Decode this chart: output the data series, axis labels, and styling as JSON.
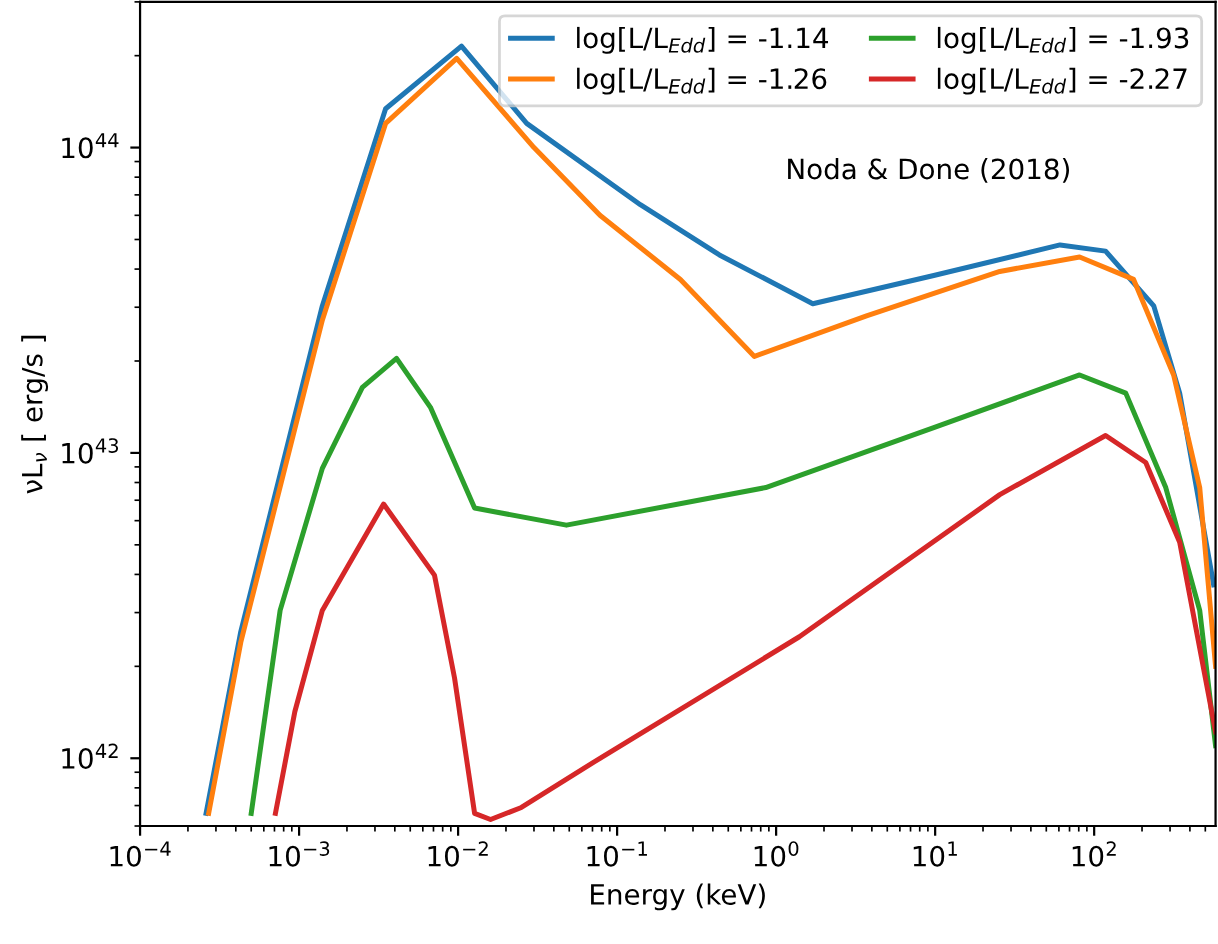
{
  "chart_data": {
    "type": "line",
    "xlabel": "Energy (keV)",
    "ylabel": "νL$_{ν}$ [ erg/s ]",
    "log": "xy",
    "grid": false,
    "legend": "top right",
    "marker": "none",
    "line_style": "solid",
    "xlim": [
      0.0001,
      580
    ],
    "ylim": [
      6e+41,
      3e+44
    ],
    "xticks": [
      {
        "value": 0.0001,
        "label": "10$^{−4}$"
      },
      {
        "value": 0.001,
        "label": "10$^{−3}$"
      },
      {
        "value": 0.01,
        "label": "10$^{−2}$"
      },
      {
        "value": 0.1,
        "label": "10$^{−1}$"
      },
      {
        "value": 1,
        "label": "10$^{0}$"
      },
      {
        "value": 10,
        "label": "10$^{1}$"
      },
      {
        "value": 100,
        "label": "10$^{2}$"
      }
    ],
    "yticks": [
      {
        "value": 1e+42,
        "label": "10$^{42}$"
      },
      {
        "value": 1e+43,
        "label": "10$^{43}$"
      },
      {
        "value": 1e+44,
        "label": "10$^{44}$"
      }
    ],
    "annotations": [
      "Noda & Done (2018)"
    ],
    "series": [
      {
        "name": "log[L/L$_{Edd}$] = -1.14",
        "color": "#1f77b4",
        "x": [
          0.00026,
          0.00043,
          0.0014,
          0.0035,
          0.0105,
          0.027,
          0.14,
          0.44,
          1.7,
          9.8,
          61,
          118,
          237,
          345,
          564
        ],
        "values": [
          6.6e+41,
          2.6e+42,
          3.03e+43,
          1.34e+44,
          2.15e+44,
          1.2e+44,
          6.5e+43,
          4.45e+43,
          3.08e+43,
          3.81e+43,
          4.8e+43,
          4.58e+43,
          3.03e+43,
          1.57e+43,
          3.7e+42
        ]
      },
      {
        "name": "log[L/L$_{Edd}$] = -1.26",
        "color": "#ff7f0e",
        "x": [
          0.00027,
          0.00043,
          0.0014,
          0.0035,
          0.0098,
          0.03,
          0.078,
          0.25,
          0.73,
          3.7,
          25.5,
          81,
          177,
          316,
          461,
          580
        ],
        "values": [
          6.6e+41,
          2.4e+42,
          2.72e+43,
          1.2e+44,
          1.96e+44,
          1e+44,
          6e+43,
          3.7e+43,
          2.07e+43,
          2.81e+43,
          3.93e+43,
          4.38e+43,
          3.7e+43,
          1.8e+43,
          7.7e+42,
          2e+42
        ]
      },
      {
        "name": "log[L/L$_{Edd}$] = -1.93",
        "color": "#2ca02c",
        "x": [
          0.0005,
          0.00076,
          0.0014,
          0.0025,
          0.0041,
          0.0067,
          0.0127,
          0.048,
          0.86,
          9.8,
          81,
          158,
          282,
          461,
          580
        ],
        "values": [
          6.6e+41,
          3.05e+42,
          8.9e+42,
          1.64e+43,
          2.04e+43,
          1.41e+43,
          6.6e+42,
          5.8e+42,
          7.7e+42,
          1.21e+43,
          1.8e+43,
          1.57e+43,
          7.7e+42,
          3.05e+42,
          1.1e+42
        ]
      },
      {
        "name": "log[L/L$_{Edd}$] = -2.27",
        "color": "#d62728",
        "x": [
          0.00071,
          0.00094,
          0.0014,
          0.0034,
          0.0071,
          0.0095,
          0.0127,
          0.016,
          0.025,
          0.078,
          1.4,
          25.5,
          118,
          211,
          345,
          580
        ],
        "values": [
          6.6e+41,
          1.42e+42,
          3.05e+42,
          6.8e+42,
          3.98e+42,
          1.83e+42,
          6.6e+41,
          6.3e+41,
          6.9e+41,
          1e+42,
          2.5e+42,
          7.3e+42,
          1.14e+43,
          9.3e+42,
          5.1e+42,
          1.22e+42
        ]
      }
    ]
  }
}
